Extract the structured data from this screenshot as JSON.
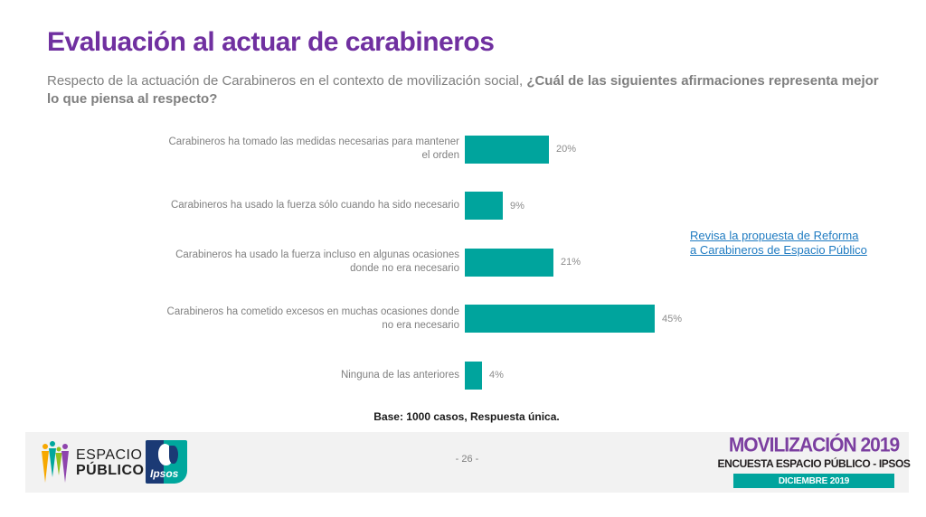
{
  "slide": {
    "title": "Evaluación al actuar de carabineros",
    "subtitle_regular": "Respecto de la actuación de Carabineros en el contexto de movilización social, ",
    "subtitle_bold": "¿Cuál de las siguientes afirmaciones representa mejor lo que piensa al respecto?"
  },
  "chart_data": {
    "type": "bar",
    "orientation": "horizontal",
    "categories": [
      "Carabineros ha tomado las medidas necesarias para mantener el orden",
      "Carabineros ha usado la fuerza sólo cuando ha sido necesario",
      "Carabineros ha usado la fuerza incluso en algunas ocasiones donde no era necesario",
      "Carabineros ha cometido excesos en muchas ocasiones donde no era necesario",
      "Ninguna de las anteriores"
    ],
    "values": [
      20,
      9,
      21,
      45,
      4
    ],
    "value_labels": [
      "20%",
      "9%",
      "21%",
      "45%",
      "4%"
    ],
    "title": "",
    "xlabel": "",
    "ylabel": "",
    "xlim": [
      0,
      100
    ],
    "grid": false,
    "legend": false,
    "bar_color": "#00A49D"
  },
  "link": {
    "line1": "Revisa la propuesta de Reforma",
    "line2": "a Carabineros de Espacio Público"
  },
  "base_note": "Base: 1000 casos, Respuesta única.",
  "footer": {
    "page_number": "- 26 -",
    "espacio_publico_logo": {
      "line1": "ESPACIO",
      "line2": "PÚBLICO"
    },
    "ipsos_logo_text": "Ipsos",
    "right_block": {
      "title": "MOVILIZACIÓN 2019",
      "subtitle": "ENCUESTA ESPACIO PÚBLICO - IPSOS",
      "banner": "DICIEMBRE 2019"
    }
  },
  "colors": {
    "title_purple": "#7030A0",
    "subtitle_gray": "#7F7F7F",
    "bar_teal": "#00A49D",
    "link_blue": "#1F7BC1",
    "footer_band": "#F2F2F2",
    "right_block_purple": "#7B3FA0",
    "banner_teal": "#00A49D"
  }
}
